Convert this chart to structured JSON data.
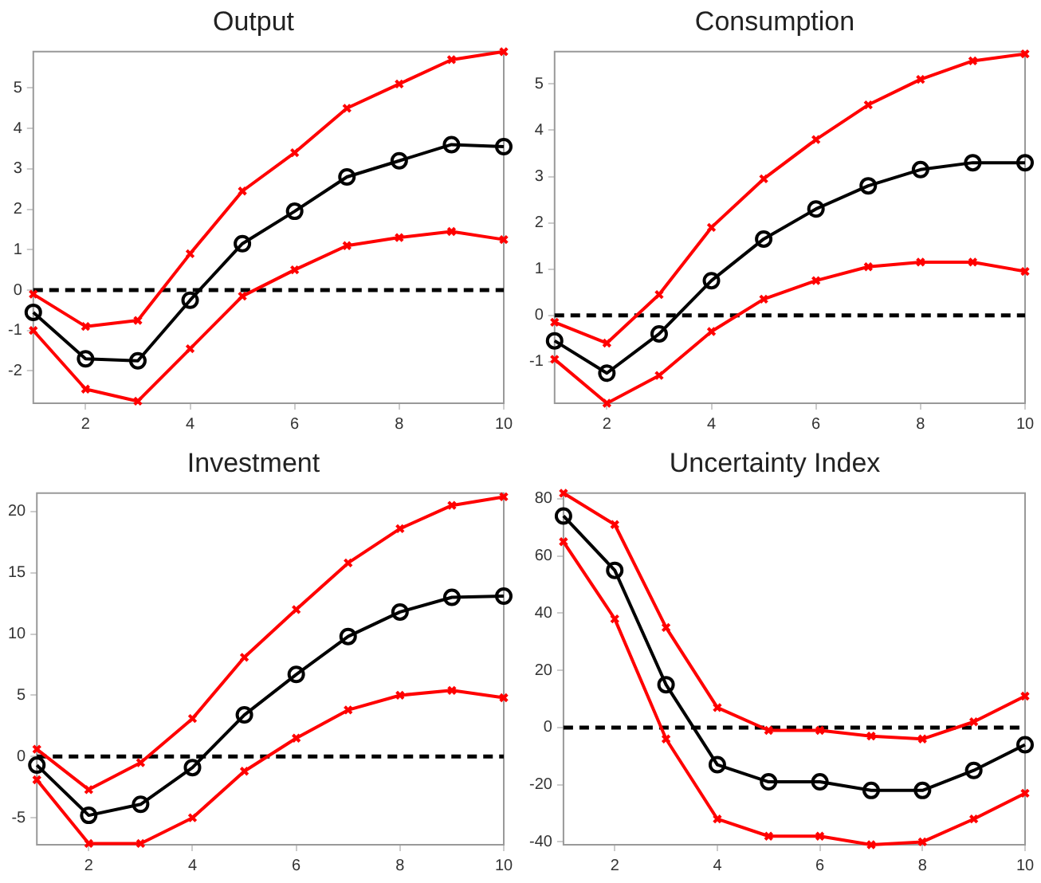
{
  "chart_data": [
    {
      "type": "line",
      "title": "Output",
      "x": [
        1,
        2,
        3,
        4,
        5,
        6,
        7,
        8,
        9,
        10
      ],
      "xlim": [
        1,
        10
      ],
      "xticks": [
        2,
        4,
        6,
        8,
        10
      ],
      "ylim": [
        -2.8,
        5.9
      ],
      "yticks": [
        -2,
        -1,
        0,
        1,
        2,
        3,
        4,
        5
      ],
      "grid": false,
      "legend": false,
      "series": [
        {
          "color": "#ff0000",
          "marker": "cross",
          "values": [
            -0.1,
            -0.9,
            -0.75,
            0.9,
            2.45,
            3.4,
            4.5,
            5.1,
            5.7,
            5.9
          ]
        },
        {
          "color": "#ff0000",
          "marker": "cross",
          "values": [
            -1.0,
            -2.45,
            -2.75,
            -1.45,
            -0.15,
            0.5,
            1.1,
            1.3,
            1.45,
            1.25
          ]
        },
        {
          "color": "#000000",
          "marker": "circle",
          "values": [
            -0.55,
            -1.7,
            -1.75,
            -0.25,
            1.15,
            1.95,
            2.8,
            3.2,
            3.6,
            3.55
          ]
        }
      ],
      "ref_lines": [
        {
          "axis": "y",
          "value": 0,
          "color": "#000000",
          "line_style": "dashed"
        }
      ]
    },
    {
      "type": "line",
      "title": "Consumption",
      "x": [
        1,
        2,
        3,
        4,
        5,
        6,
        7,
        8,
        9,
        10
      ],
      "xlim": [
        1,
        10
      ],
      "xticks": [
        2,
        4,
        6,
        8,
        10
      ],
      "ylim": [
        -1.9,
        5.7
      ],
      "yticks": [
        -1,
        0,
        1,
        2,
        3,
        4,
        5
      ],
      "grid": false,
      "legend": false,
      "series": [
        {
          "color": "#ff0000",
          "marker": "cross",
          "values": [
            -0.15,
            -0.6,
            0.45,
            1.9,
            2.95,
            3.8,
            4.55,
            5.1,
            5.5,
            5.65
          ]
        },
        {
          "color": "#ff0000",
          "marker": "cross",
          "values": [
            -0.95,
            -1.9,
            -1.3,
            -0.35,
            0.35,
            0.75,
            1.05,
            1.15,
            1.15,
            0.95
          ]
        },
        {
          "color": "#000000",
          "marker": "circle",
          "values": [
            -0.55,
            -1.25,
            -0.4,
            0.75,
            1.65,
            2.3,
            2.8,
            3.15,
            3.3,
            3.3
          ]
        }
      ],
      "ref_lines": [
        {
          "axis": "y",
          "value": 0,
          "color": "#000000",
          "line_style": "dashed"
        }
      ]
    },
    {
      "type": "line",
      "title": "Investment",
      "x": [
        1,
        2,
        3,
        4,
        5,
        6,
        7,
        8,
        9,
        10
      ],
      "xlim": [
        1,
        10
      ],
      "xticks": [
        2,
        4,
        6,
        8,
        10
      ],
      "ylim": [
        -7.2,
        21.5
      ],
      "yticks": [
        -5,
        0,
        5,
        10,
        15,
        20
      ],
      "grid": false,
      "legend": false,
      "series": [
        {
          "color": "#ff0000",
          "marker": "cross",
          "values": [
            0.6,
            -2.7,
            -0.5,
            3.1,
            8.1,
            12.0,
            15.8,
            18.6,
            20.5,
            21.2
          ]
        },
        {
          "color": "#ff0000",
          "marker": "cross",
          "values": [
            -1.9,
            -7.1,
            -7.1,
            -5.0,
            -1.2,
            1.5,
            3.8,
            5.0,
            5.4,
            4.8
          ]
        },
        {
          "color": "#000000",
          "marker": "circle",
          "values": [
            -0.7,
            -4.8,
            -3.9,
            -0.9,
            3.4,
            6.7,
            9.8,
            11.8,
            13.0,
            13.1
          ]
        }
      ],
      "ref_lines": [
        {
          "axis": "y",
          "value": 0,
          "color": "#000000",
          "line_style": "dashed"
        }
      ]
    },
    {
      "type": "line",
      "title": "Uncertainty Index",
      "x": [
        1,
        2,
        3,
        4,
        5,
        6,
        7,
        8,
        9,
        10
      ],
      "xlim": [
        1,
        10
      ],
      "xticks": [
        2,
        4,
        6,
        8,
        10
      ],
      "ylim": [
        -41,
        82
      ],
      "yticks": [
        -40,
        -20,
        0,
        20,
        40,
        60,
        80
      ],
      "grid": false,
      "legend": false,
      "series": [
        {
          "color": "#ff0000",
          "marker": "cross",
          "values": [
            82,
            71,
            35,
            7,
            -1,
            -1,
            -3,
            -4,
            2,
            11
          ]
        },
        {
          "color": "#ff0000",
          "marker": "cross",
          "values": [
            65,
            38,
            -4,
            -32,
            -38,
            -38,
            -41,
            -40,
            -32,
            -23
          ]
        },
        {
          "color": "#000000",
          "marker": "circle",
          "values": [
            74,
            55,
            15,
            -13,
            -19,
            -19,
            -22,
            -22,
            -15,
            -6
          ]
        }
      ],
      "ref_lines": [
        {
          "axis": "y",
          "value": 0,
          "color": "#000000",
          "line_style": "dashed"
        }
      ]
    }
  ]
}
